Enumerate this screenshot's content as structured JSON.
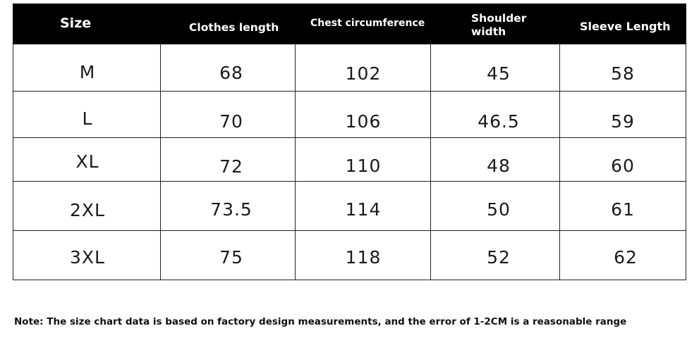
{
  "headers": [
    "Size",
    "Clothes length",
    "Chest circumference",
    "Shoulder width",
    "Sleeve Length"
  ],
  "rows": [
    [
      "M",
      "68",
      "102",
      "45",
      "58"
    ],
    [
      "L",
      "70",
      "106",
      "46.5",
      "59"
    ],
    [
      "XL",
      "72",
      "110",
      "48",
      "60"
    ],
    [
      "2XL",
      "73.5",
      "114",
      "50",
      "61"
    ],
    [
      "3XL",
      "75",
      "118",
      "52",
      "62"
    ]
  ],
  "note": "Note: The size chart data is based on factory design measurements, and the error of 1-2CM is a reasonable range"
}
